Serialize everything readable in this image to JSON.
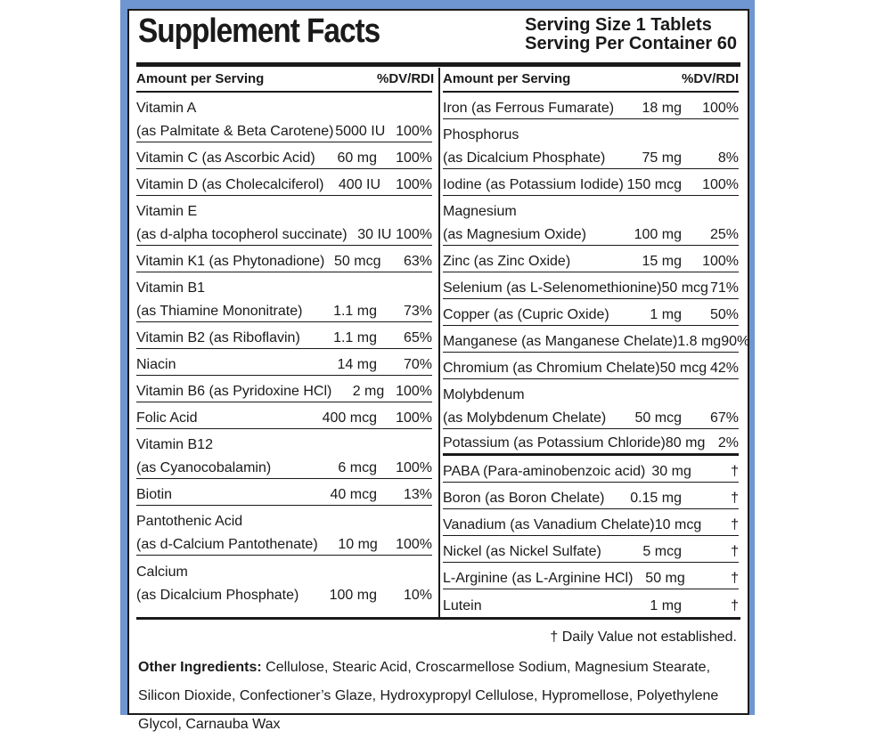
{
  "title": "Supplement Facts",
  "serving_size": "Serving Size 1 Tablets",
  "servings_per_container": "Serving Per Container 60",
  "col_header": {
    "amount": "Amount per Serving",
    "dv": "%DV/RDI"
  },
  "left_rows": [
    {
      "line1": "Vitamin A",
      "line2": "(as Palmitate & Beta Carotene)",
      "amount": "5000 IU",
      "dv": "100%"
    },
    {
      "line1": "Vitamin C (as Ascorbic Acid)",
      "amount": "60 mg",
      "dv": "100%"
    },
    {
      "line1": "Vitamin D (as Cholecalciferol)",
      "amount": "400 IU",
      "dv": "100%"
    },
    {
      "line1": "Vitamin E",
      "line2": "(as d-alpha tocopherol succinate)",
      "amount": "30 IU",
      "dv": "100%"
    },
    {
      "line1": "Vitamin K1 (as Phytonadione)",
      "amount": "50 mcg",
      "dv": "63%"
    },
    {
      "line1": "Vitamin B1",
      "line2": "(as Thiamine Mononitrate)",
      "amount": "1.1 mg",
      "dv": "73%"
    },
    {
      "line1": "Vitamin B2 (as Riboflavin)",
      "amount": "1.1 mg",
      "dv": "65%"
    },
    {
      "line1": "Niacin",
      "amount": "14 mg",
      "dv": "70%"
    },
    {
      "line1": "Vitamin B6 (as Pyridoxine HCl)",
      "amount": "2 mg",
      "dv": "100%"
    },
    {
      "line1": "Folic Acid",
      "amount": "400 mcg",
      "dv": "100%"
    },
    {
      "line1": "Vitamin B12",
      "line2": "(as Cyanocobalamin)",
      "amount": "6 mcg",
      "dv": "100%"
    },
    {
      "line1": "Biotin",
      "amount": "40 mcg",
      "dv": "13%"
    },
    {
      "line1": "Pantothenic Acid",
      "line2": "(as d-Calcium Pantothenate)",
      "amount": "10 mg",
      "dv": "100%"
    },
    {
      "line1": "Calcium",
      "line2": "(as Dicalcium Phosphate)",
      "amount": "100 mg",
      "dv": "10%"
    }
  ],
  "right_rows": [
    {
      "line1": "Iron (as Ferrous Fumarate)",
      "amount": "18 mg",
      "dv": "100%"
    },
    {
      "line1": "Phosphorus",
      "line2": "(as Dicalcium Phosphate)",
      "amount": "75 mg",
      "dv": "8%"
    },
    {
      "line1": "Iodine (as Potassium Iodide)",
      "amount": "150 mcg",
      "dv": "100%"
    },
    {
      "line1": "Magnesium",
      "line2": "(as Magnesium Oxide)",
      "amount": "100 mg",
      "dv": "25%"
    },
    {
      "line1": "Zinc (as Zinc Oxide)",
      "amount": "15 mg",
      "dv": "100%"
    },
    {
      "line1": "Selenium (as L-Selenomethionine)",
      "amount": "50 mcg",
      "dv": "71%"
    },
    {
      "line1": "Copper (as (Cupric Oxide)",
      "amount": "1 mg",
      "dv": "50%"
    },
    {
      "line1": "Manganese (as Manganese Chelate)",
      "amount": "1.8 mg",
      "dv": "90%"
    },
    {
      "line1": "Chromium (as Chromium Chelate)",
      "amount": "50 mcg",
      "dv": "42%"
    },
    {
      "line1": "Molybdenum",
      "line2": "(as Molybdenum Chelate)",
      "amount": "50 mcg",
      "dv": "67%"
    },
    {
      "line1": "Potassium (as Potassium Chloride)",
      "amount": "80 mg",
      "dv": "2%"
    },
    {
      "line1": "PABA (Para-aminobenzoic acid)",
      "amount": "30 mg",
      "dv": "†"
    },
    {
      "line1": "Boron (as Boron Chelate)",
      "amount": "0.15 mg",
      "dv": "†"
    },
    {
      "line1": "Vanadium (as Vanadium Chelate)",
      "amount": "10 mcg",
      "dv": "†"
    },
    {
      "line1": "Nickel (as Nickel Sulfate)",
      "amount": "5 mcg",
      "dv": "†"
    },
    {
      "line1": "L-Arginine (as L-Arginine HCl)",
      "amount": "50 mg",
      "dv": "†"
    },
    {
      "line1": "Lutein",
      "amount": "1 mg",
      "dv": "†"
    }
  ],
  "footnote": "† Daily Value not established.",
  "other_ingredients_label": "Other Ingredients:",
  "other_ingredients": "Cellulose, Stearic Acid, Croscarmellose Sodium, Magnesium Stearate, Silicon Dioxide, Confectioner’s Glaze, Hydroxypropyl Cellulose, Hypromellose, Polyethylene Glycol, Carnauba Wax"
}
